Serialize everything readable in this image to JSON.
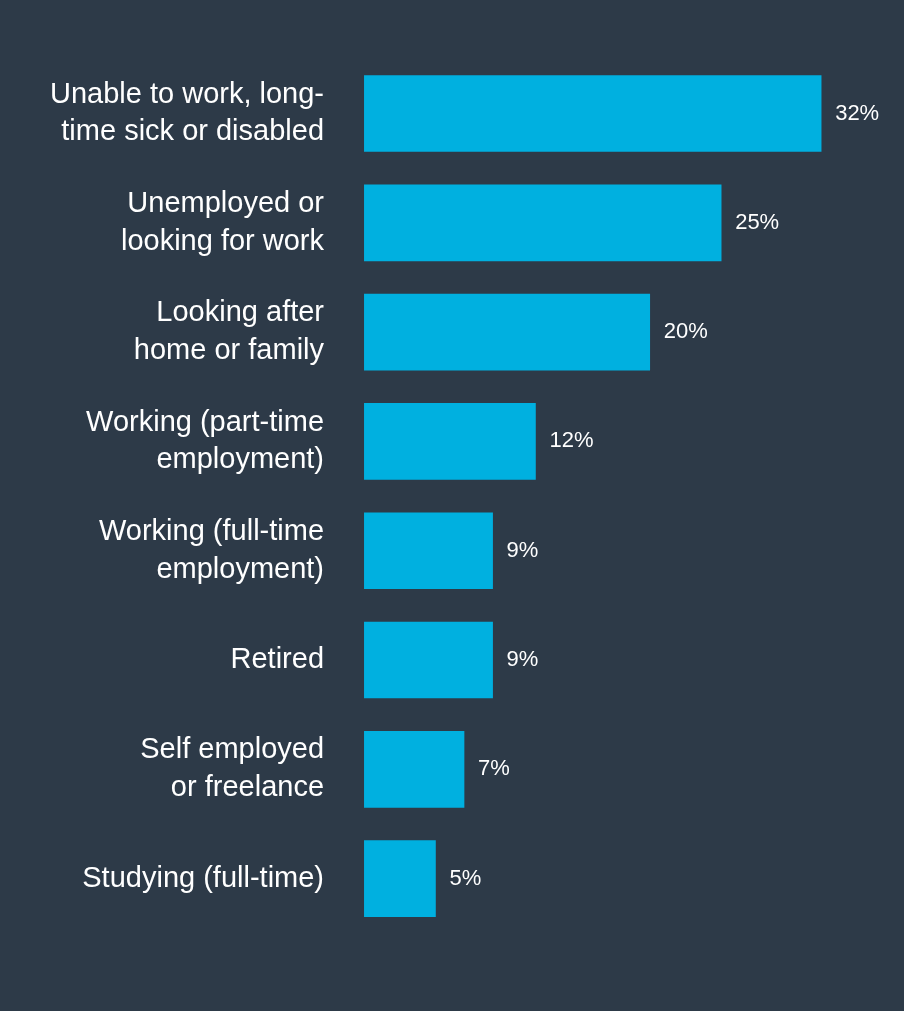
{
  "chart_data": {
    "type": "bar",
    "orientation": "horizontal",
    "categories": [
      "Unable to work, long-\ntime sick or disabled",
      "Unemployed or\nlooking for work",
      "Looking after\nhome or family",
      "Working (part-time\nemployment)",
      "Working (full-time\nemployment)",
      "Retired",
      "Self employed\nor freelance",
      "Studying (full-time)"
    ],
    "values": [
      32,
      25,
      20,
      12,
      9,
      9,
      7,
      5
    ],
    "value_labels": [
      "32%",
      "25%",
      "20%",
      "12%",
      "9%",
      "9%",
      "7%",
      "5%"
    ],
    "color": "#00b0e0",
    "tick_labels": "y"
  }
}
